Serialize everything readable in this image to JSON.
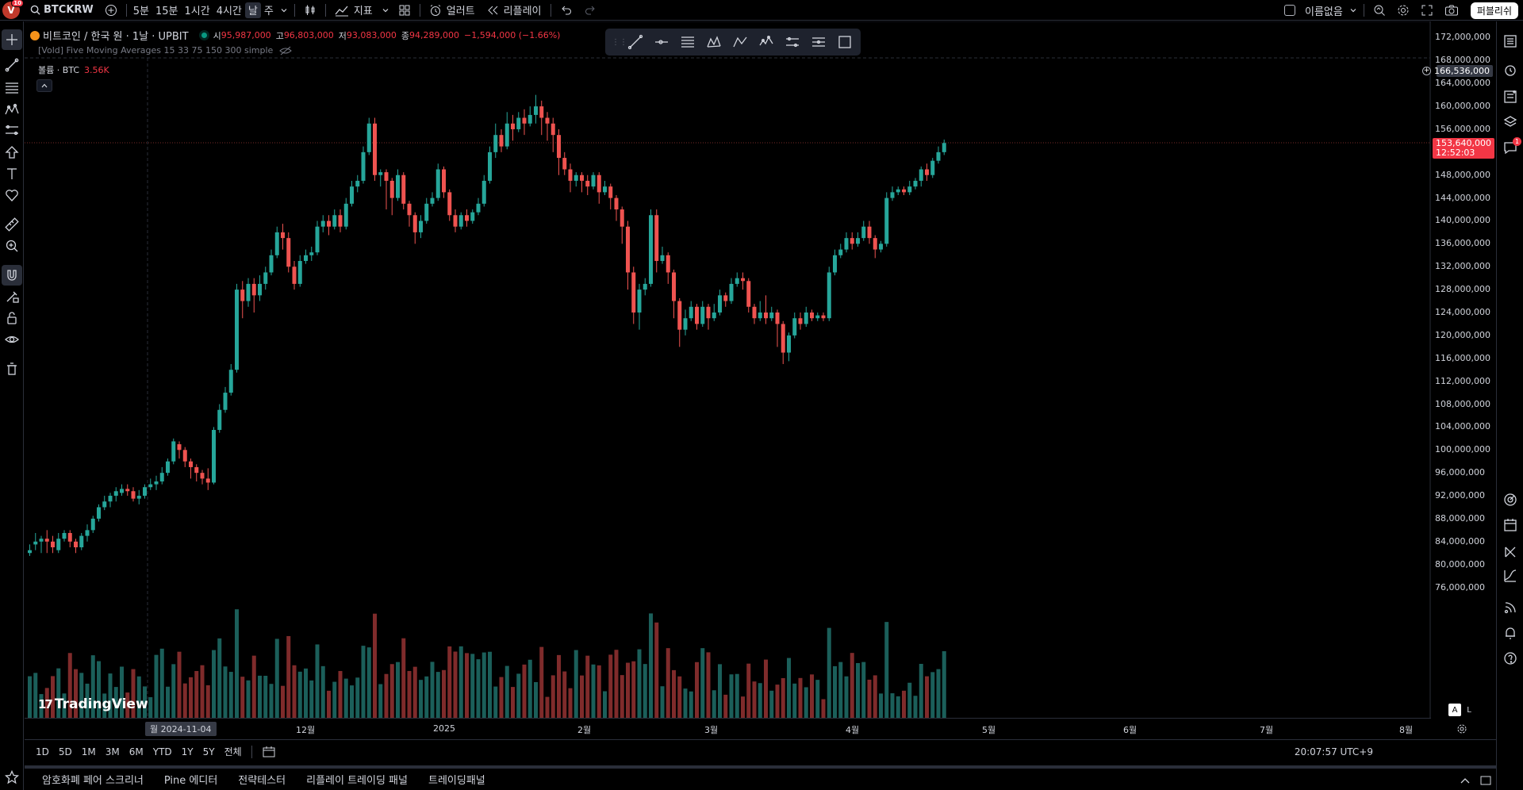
{
  "topbar": {
    "avatar_letter": "V",
    "avatar_badge": "10",
    "symbol": "BTCKRW",
    "intervals": [
      "5분",
      "15분",
      "1시간",
      "4시간",
      "날",
      "주"
    ],
    "active_interval": "날",
    "indicators_label": "지표",
    "alert_label": "얼러트",
    "replay_label": "리플레이",
    "layout_name": "이름없음",
    "publish_label": "퍼블리쉬"
  },
  "legend": {
    "title": "비트코인 / 한국 원 · 1날 · UPBIT",
    "open_key": "시",
    "open": "95,987,000",
    "high_key": "고",
    "high": "96,803,000",
    "low_key": "저",
    "low": "93,083,000",
    "close_key": "종",
    "close": "94,289,000",
    "change": "−1,594,000 (−1.66%)",
    "indicator": "[Vold] Five Moving Averages 15 33 75 150 300 simple",
    "volume_label": "볼륨 · BTC",
    "volume_value": "3.56K"
  },
  "price_axis": {
    "labels": [
      "172,000,000",
      "168,000,000",
      "164,000,000",
      "160,000,000",
      "156,000,000",
      "148,000,000",
      "144,000,000",
      "140,000,000",
      "136,000,000",
      "132,000,000",
      "128,000,000",
      "124,000,000",
      "120,000,000",
      "116,000,000",
      "112,000,000",
      "108,000,000",
      "104,000,000",
      "100,000,000",
      "96,000,000",
      "92,000,000",
      "88,000,000",
      "84,000,000",
      "80,000,000",
      "76,000,000"
    ],
    "crosshair_price": "166,536,000",
    "last_price": "153,640,000",
    "countdown": "12:52:03",
    "scale_auto": "A",
    "scale_log": "L"
  },
  "time_axis": {
    "cursor_label": "월 2024-11-04",
    "labels": [
      "12월",
      "2025",
      "2월",
      "3월",
      "4월",
      "5월",
      "6월",
      "7월",
      "8월"
    ]
  },
  "range_bar": {
    "ranges": [
      "1D",
      "5D",
      "1M",
      "3M",
      "6M",
      "YTD",
      "1Y",
      "5Y",
      "전체"
    ],
    "clock": "20:07:57 UTC+9"
  },
  "bottom_tabs": [
    "암호화폐 페어 스크리너",
    "Pine 에디터",
    "전략테스터",
    "리플레이 트레이딩 패널",
    "트레이딩패널"
  ],
  "branding": "TradingView",
  "colors": {
    "up": "#26a69a",
    "down": "#ef5350",
    "up_vol": "#1b5f5a",
    "down_vol": "#7f2b2b"
  },
  "chart_data": {
    "type": "candlestick",
    "symbol": "BTCKRW",
    "interval": "1D",
    "ylim": [
      74000000,
      174000000
    ],
    "candles": [
      [
        82,
        82.5,
        81.5,
        83.5
      ],
      [
        83.5,
        84,
        82.5,
        85.5
      ],
      [
        84,
        84.5,
        82,
        85
      ],
      [
        84.5,
        84,
        82,
        86
      ],
      [
        84,
        83,
        82,
        85
      ],
      [
        82.5,
        84.5,
        82,
        85.5
      ],
      [
        84.5,
        85.5,
        84,
        86
      ],
      [
        85.5,
        84,
        83,
        86
      ],
      [
        84,
        83,
        82,
        84.5
      ],
      [
        83,
        85,
        82.5,
        85.5
      ],
      [
        85,
        86,
        84,
        87
      ],
      [
        86,
        88,
        85.5,
        88.5
      ],
      [
        88,
        90,
        87.5,
        90.5
      ],
      [
        90,
        91,
        89.5,
        92
      ],
      [
        91,
        92,
        90,
        92.5
      ],
      [
        92,
        92.8,
        91,
        93.5
      ],
      [
        92.5,
        93.2,
        92,
        94
      ],
      [
        93.2,
        92.8,
        92,
        94
      ],
      [
        92.8,
        91.5,
        91,
        93.5
      ],
      [
        91.5,
        92,
        90.5,
        93
      ],
      [
        92,
        93.5,
        91.5,
        94
      ],
      [
        93.5,
        94,
        93,
        95
      ],
      [
        94,
        94.5,
        93,
        95.5
      ],
      [
        94.5,
        96,
        94,
        97
      ],
      [
        96,
        98,
        95.5,
        98.5
      ],
      [
        98,
        101.5,
        97.5,
        102
      ],
      [
        101,
        100,
        98.5,
        101.5
      ],
      [
        100,
        98,
        97,
        100.5
      ],
      [
        98,
        97,
        95,
        98.5
      ],
      [
        97,
        96,
        94.5,
        97.5
      ],
      [
        96,
        95,
        94,
        96.5
      ],
      [
        95,
        94.3,
        93,
        96.8
      ],
      [
        94.3,
        103.5,
        94,
        104
      ],
      [
        103.5,
        107,
        103,
        108
      ],
      [
        107,
        110,
        106.5,
        111
      ],
      [
        110,
        114,
        109.5,
        115
      ],
      [
        114,
        128,
        113.5,
        129
      ],
      [
        128,
        126,
        123,
        129.5
      ],
      [
        126,
        129,
        125,
        130
      ],
      [
        129,
        127,
        124,
        130
      ],
      [
        127,
        129,
        126,
        130.5
      ],
      [
        129,
        131,
        128,
        132
      ],
      [
        131,
        134,
        130.5,
        135
      ],
      [
        134,
        138,
        133.5,
        139
      ],
      [
        138,
        137,
        135,
        139.5
      ],
      [
        137,
        132,
        131,
        138
      ],
      [
        132,
        129,
        128,
        133
      ],
      [
        129,
        133,
        128.5,
        134
      ],
      [
        133,
        134,
        132.5,
        135
      ],
      [
        134,
        134.5,
        133,
        135.5
      ],
      [
        134.5,
        139,
        134,
        140
      ],
      [
        139,
        140,
        138,
        141
      ],
      [
        140,
        139,
        137.5,
        141
      ],
      [
        139,
        141,
        138.5,
        142
      ],
      [
        141,
        139,
        138,
        142
      ],
      [
        139,
        143,
        138.5,
        144
      ],
      [
        143,
        146,
        142.5,
        147
      ],
      [
        146,
        147,
        145,
        148
      ],
      [
        147,
        152,
        146.5,
        153
      ],
      [
        152,
        157,
        151.5,
        158
      ],
      [
        157,
        148,
        147,
        158
      ],
      [
        148,
        148.5,
        146,
        149
      ],
      [
        148.5,
        147,
        142,
        149
      ],
      [
        147,
        144,
        141,
        147.5
      ],
      [
        144,
        148,
        143.5,
        149
      ],
      [
        148,
        143,
        142,
        148.5
      ],
      [
        143,
        141,
        139,
        143.5
      ],
      [
        141,
        138,
        136,
        141.5
      ],
      [
        138,
        140,
        137,
        141
      ],
      [
        140,
        143,
        139.5,
        144
      ],
      [
        143,
        144,
        142.5,
        145
      ],
      [
        144,
        149,
        143.5,
        150
      ],
      [
        149,
        145,
        144,
        149.5
      ],
      [
        145,
        141,
        140,
        145.5
      ],
      [
        141,
        139,
        138,
        142
      ],
      [
        139,
        141,
        138.5,
        141.5
      ],
      [
        141,
        140,
        139,
        142
      ],
      [
        140,
        141.5,
        139.5,
        142
      ],
      [
        141.5,
        143,
        141,
        144
      ],
      [
        143,
        147,
        142.5,
        148
      ],
      [
        147,
        152,
        146.5,
        153
      ],
      [
        152,
        155,
        151,
        157
      ],
      [
        155,
        153,
        152,
        156
      ],
      [
        153,
        157,
        152.5,
        159
      ],
      [
        157,
        156,
        154,
        158.5
      ],
      [
        156,
        158,
        155.5,
        159
      ],
      [
        158,
        157,
        155,
        159.5
      ],
      [
        157,
        158.5,
        156.5,
        160
      ],
      [
        158.5,
        160,
        157,
        162
      ],
      [
        160,
        158,
        155,
        161
      ],
      [
        158,
        157,
        154,
        159
      ],
      [
        157,
        155,
        152,
        158
      ],
      [
        155,
        151,
        148,
        156
      ],
      [
        151,
        149,
        148,
        152
      ],
      [
        149,
        147,
        145,
        150
      ],
      [
        147,
        148,
        146,
        148.5
      ],
      [
        148,
        147,
        145,
        148.5
      ],
      [
        147,
        146,
        144.5,
        148
      ],
      [
        146,
        148,
        145.5,
        148.5
      ],
      [
        148,
        145,
        143,
        148.5
      ],
      [
        145,
        146,
        144.5,
        147
      ],
      [
        146,
        144,
        142,
        146.5
      ],
      [
        144,
        142,
        140,
        144.5
      ],
      [
        142,
        139,
        136,
        142.5
      ],
      [
        139,
        131,
        128,
        140
      ],
      [
        131,
        124,
        122,
        132
      ],
      [
        124,
        128,
        121,
        129
      ],
      [
        128,
        129,
        127,
        130
      ],
      [
        129,
        141,
        128.5,
        142
      ],
      [
        141,
        133,
        131,
        142
      ],
      [
        133,
        134,
        132.5,
        135.5
      ],
      [
        134,
        131,
        129,
        134.5
      ],
      [
        131,
        126,
        123,
        131.5
      ],
      [
        126,
        121,
        118,
        126.5
      ],
      [
        121,
        123,
        120,
        124.5
      ],
      [
        123,
        125,
        122.5,
        126
      ],
      [
        125,
        122,
        121,
        125.5
      ],
      [
        122,
        125,
        121.5,
        126
      ],
      [
        125,
        123,
        121,
        125.5
      ],
      [
        123,
        124,
        122.5,
        125.5
      ],
      [
        124,
        127,
        123.5,
        128
      ],
      [
        127,
        126,
        125,
        127.5
      ],
      [
        126,
        129,
        125.5,
        130
      ],
      [
        129,
        130,
        128.5,
        131
      ],
      [
        130,
        129.5,
        128,
        131
      ],
      [
        129.5,
        125,
        124,
        130
      ],
      [
        125,
        123,
        122,
        125.5
      ],
      [
        123,
        124,
        122.5,
        126
      ],
      [
        124,
        123,
        122,
        127
      ],
      [
        123,
        124,
        122.5,
        125
      ],
      [
        124,
        122,
        118,
        124.5
      ],
      [
        122,
        117,
        115,
        122.5
      ],
      [
        117,
        120,
        115.5,
        120.5
      ],
      [
        120,
        123,
        119.5,
        124
      ],
      [
        123,
        122,
        121,
        124
      ],
      [
        122,
        124,
        121.5,
        125
      ],
      [
        124,
        123,
        122.5,
        124.5
      ],
      [
        123,
        123.5,
        122.5,
        124
      ],
      [
        123.5,
        123,
        122.5,
        124
      ],
      [
        123,
        131,
        122.5,
        132
      ],
      [
        131,
        134,
        130.5,
        135
      ],
      [
        134,
        135,
        133.5,
        136
      ],
      [
        135,
        137,
        134.5,
        138
      ],
      [
        137,
        136,
        135,
        138
      ],
      [
        136,
        137,
        135.5,
        138
      ],
      [
        137,
        139,
        136.5,
        140
      ],
      [
        139,
        137,
        136,
        140
      ],
      [
        137,
        135,
        133.5,
        137.5
      ],
      [
        135,
        136,
        134.5,
        136.5
      ],
      [
        136,
        144,
        135.5,
        145
      ],
      [
        144,
        145,
        143.5,
        146
      ],
      [
        145,
        145.5,
        144.5,
        146
      ],
      [
        145.5,
        145,
        144.5,
        146
      ],
      [
        145,
        146,
        144.5,
        147
      ],
      [
        146,
        147,
        145.5,
        147.5
      ],
      [
        147,
        149,
        146,
        149.5
      ],
      [
        149,
        148,
        147,
        150
      ],
      [
        148,
        150.5,
        147.5,
        151
      ],
      [
        150.5,
        152,
        150,
        153
      ],
      [
        152,
        153.6,
        151.5,
        154.2
      ]
    ]
  }
}
